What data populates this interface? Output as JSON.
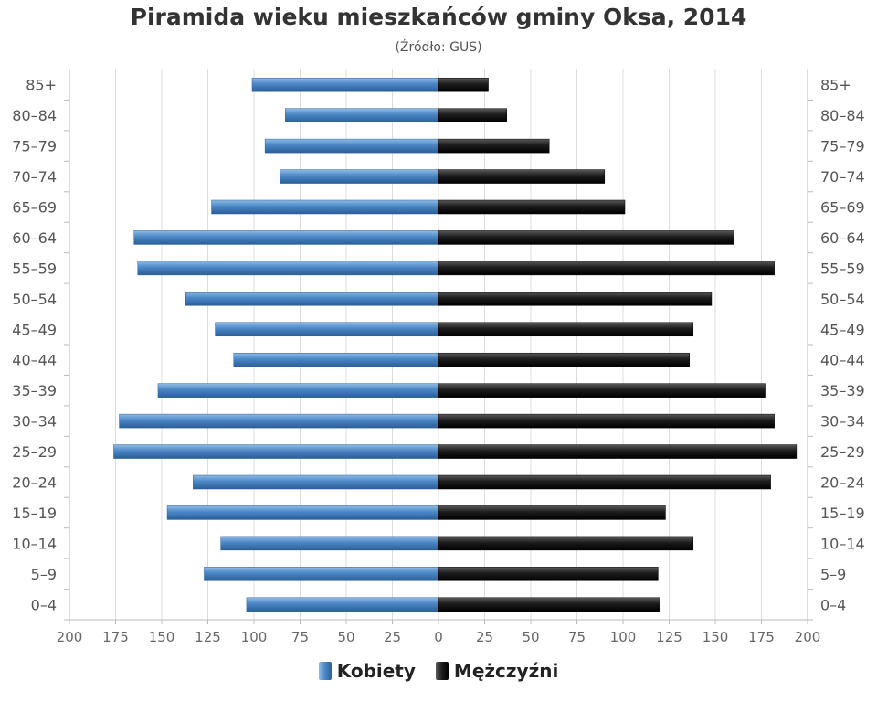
{
  "title": "Piramida wieku mieszkańców gminy Oksa, 2014",
  "subtitle": "(Źródło: GUS)",
  "chart_data": {
    "type": "bar",
    "orientation": "horizontal-population-pyramid",
    "categories": [
      "85+",
      "80-84",
      "75-79",
      "70-74",
      "65-69",
      "60-64",
      "55-59",
      "50-54",
      "45-49",
      "40-44",
      "35-39",
      "30-34",
      "25-29",
      "20-24",
      "15-19",
      "10-14",
      "5-9",
      "0-4"
    ],
    "series": [
      {
        "name": "Kobiety",
        "color": "#4a86c5",
        "values": [
          101,
          83,
          94,
          86,
          123,
          165,
          163,
          137,
          121,
          111,
          152,
          173,
          176,
          133,
          147,
          118,
          127,
          104
        ]
      },
      {
        "name": "Mężczyźni",
        "color": "#1c1c1c",
        "values": [
          27,
          37,
          60,
          90,
          101,
          160,
          182,
          148,
          138,
          136,
          177,
          182,
          194,
          180,
          123,
          138,
          119,
          120
        ]
      }
    ],
    "xticks": [
      "200",
      "175",
      "150",
      "125",
      "100",
      "75",
      "50",
      "25",
      "0",
      "25",
      "50",
      "75",
      "100",
      "125",
      "150",
      "175",
      "200"
    ],
    "xlim": [
      0,
      200
    ],
    "grid": true,
    "legend_position": "bottom"
  }
}
